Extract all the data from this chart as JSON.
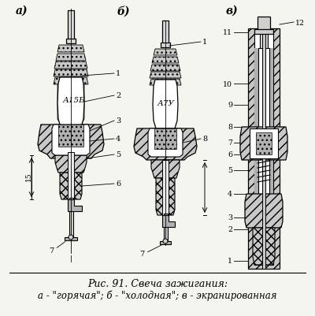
{
  "title_line1": "Рис. 91. Свеча зажигания:",
  "title_line2": "а - \"горячая\"; б - \"холодная\"; в - экранированная",
  "label_a": "а)",
  "label_b": "б)",
  "label_v": "в)",
  "bg_color": "#f5f5f0",
  "fig_width": 4.0,
  "fig_height": 4.02,
  "dpi": 100,
  "caption_fontsize": 9.0,
  "label_fontsize": 10
}
